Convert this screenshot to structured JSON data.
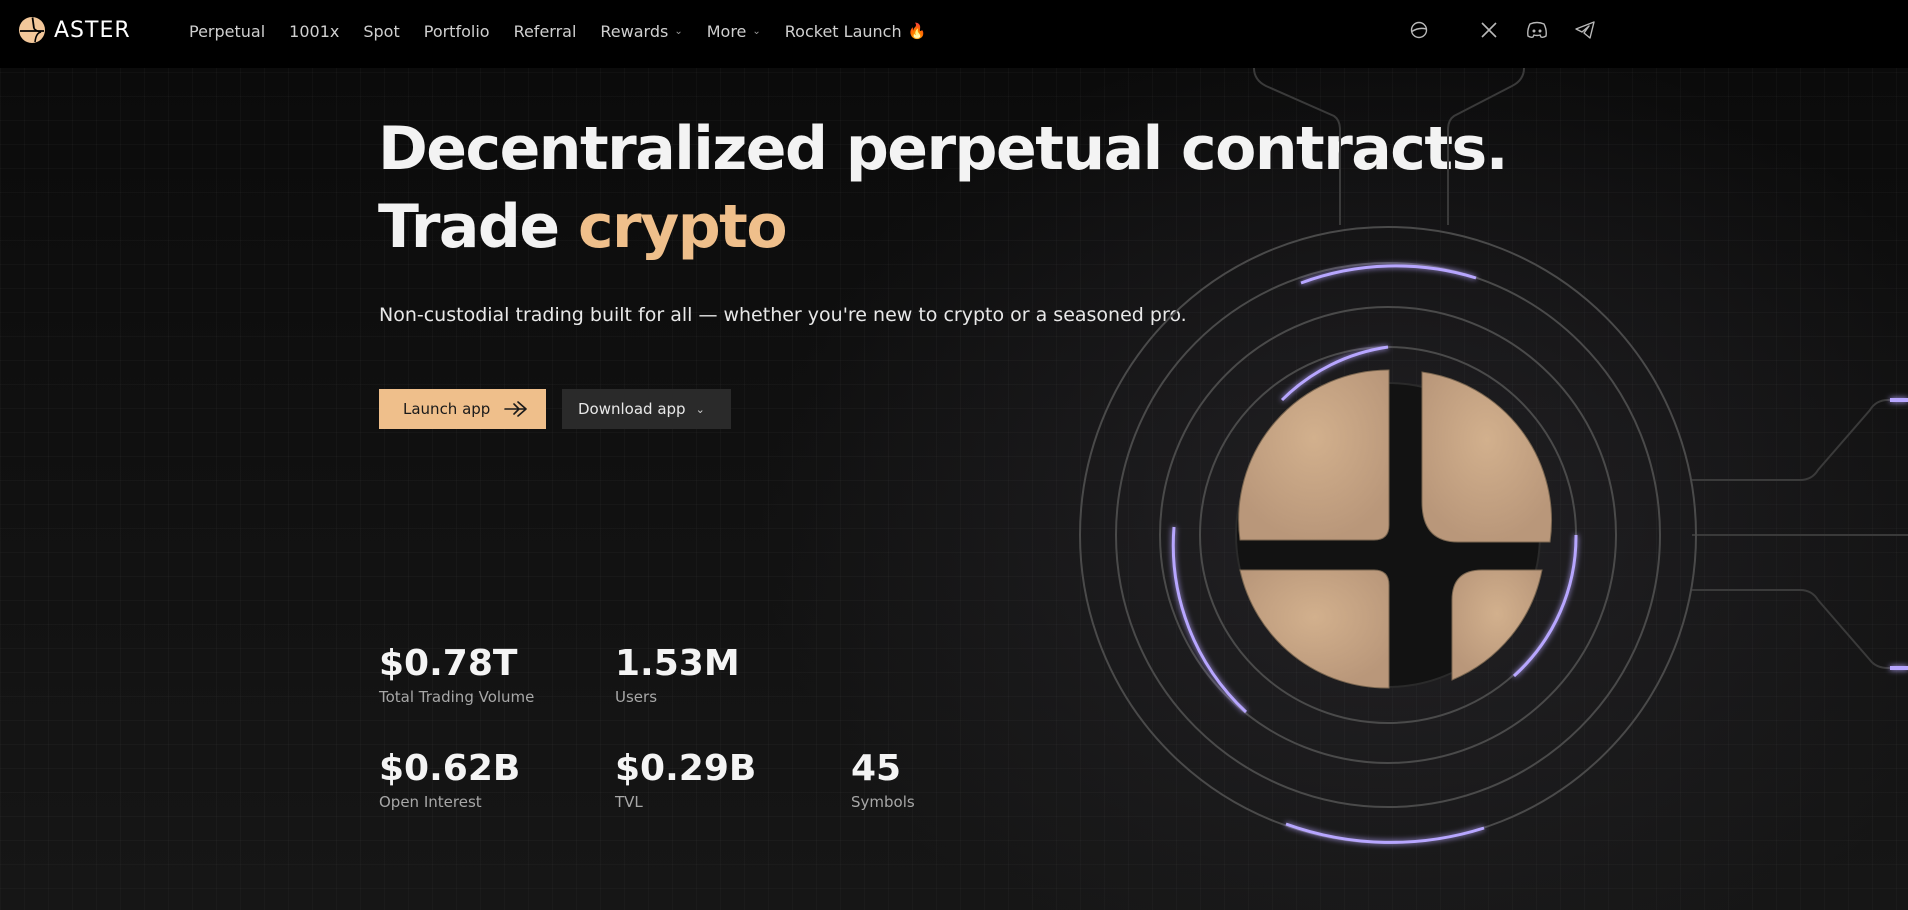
{
  "brand": {
    "name": "ASTER",
    "logo_icon": "aster-logo-icon"
  },
  "nav": {
    "links": [
      {
        "label": "Perpetual"
      },
      {
        "label": "1001x"
      },
      {
        "label": "Spot"
      },
      {
        "label": "Portfolio"
      },
      {
        "label": "Referral"
      },
      {
        "label": "Rewards",
        "has_dropdown": true
      },
      {
        "label": "More",
        "has_dropdown": true
      },
      {
        "label": "Rocket Launch",
        "icon": "flame-icon"
      }
    ],
    "icons": [
      "language-icon",
      "x-twitter-icon",
      "discord-icon",
      "telegram-icon"
    ]
  },
  "hero": {
    "title_line1": "Decentralized perpetual contracts.",
    "title_line2_prefix": "Trade ",
    "title_line2_accent": "crypto",
    "subtitle": "Non-custodial trading built for all — whether you're new to crypto or a seasoned pro.",
    "launch_label": "Launch app",
    "download_label": "Download app"
  },
  "stats": [
    {
      "value": "$0.78T",
      "label": "Total Trading Volume"
    },
    {
      "value": "1.53M",
      "label": "Users"
    },
    {
      "value": "$0.62B",
      "label": "Open Interest"
    },
    {
      "value": "$0.29B",
      "label": "TVL"
    },
    {
      "value": "45",
      "label": "Symbols"
    }
  ],
  "colors": {
    "accent": "#efbf8b",
    "background": "#0c0c0c",
    "nav_background": "#000000",
    "glow": "#b7a6ff",
    "logo_fill": "#c8a886"
  }
}
